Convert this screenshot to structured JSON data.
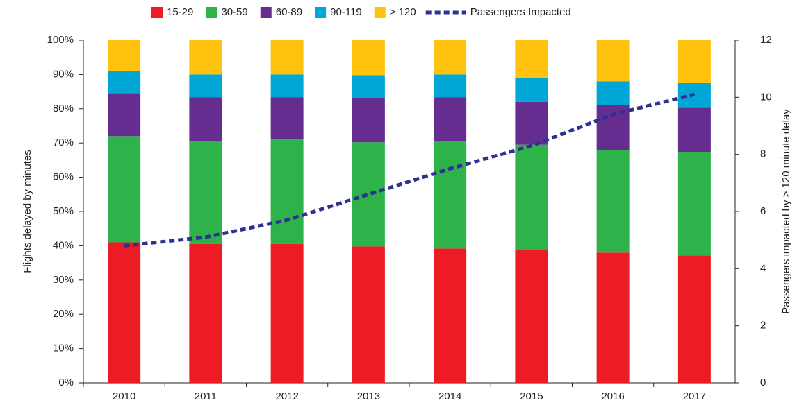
{
  "chart_data": {
    "type": "bar",
    "stacked": true,
    "categories": [
      "2010",
      "2011",
      "2012",
      "2013",
      "2014",
      "2015",
      "2016",
      "2017"
    ],
    "series": [
      {
        "name": "15-29",
        "color": "#ed1c24",
        "values": [
          41,
          40.5,
          40.5,
          39.8,
          39.2,
          38.8,
          38,
          37.2
        ]
      },
      {
        "name": "30-59",
        "color": "#2db34a",
        "values": [
          31,
          30,
          30.5,
          30.4,
          31.4,
          30.7,
          30,
          30.2
        ]
      },
      {
        "name": "60-89",
        "color": "#662d91",
        "values": [
          12.5,
          12.8,
          12.3,
          12.8,
          12.7,
          12.5,
          13,
          12.9
        ]
      },
      {
        "name": "90-119",
        "color": "#00a6d6",
        "values": [
          6.5,
          6.7,
          6.7,
          6.8,
          6.7,
          7,
          7,
          7.2
        ]
      },
      {
        "name": "> 120",
        "color": "#ffc20e",
        "values": [
          9,
          10,
          10,
          10.2,
          10,
          11,
          12,
          12.5
        ]
      },
      {
        "name": "Passengers Impacted",
        "color": "#2e3192",
        "type": "line",
        "dashed": true,
        "axis": "y2",
        "values": [
          4.8,
          5.1,
          5.7,
          6.6,
          7.5,
          8.3,
          9.4,
          10.1
        ]
      }
    ],
    "ylabel": "Flights delayed by minutes",
    "y2label": "Passengers impacted by > 120 minute delay",
    "ylim": [
      0,
      100
    ],
    "yticks": [
      {
        "value": 0,
        "label": "0%"
      },
      {
        "value": 10,
        "label": "10%"
      },
      {
        "value": 20,
        "label": "20%"
      },
      {
        "value": 30,
        "label": "30%"
      },
      {
        "value": 40,
        "label": "40%"
      },
      {
        "value": 50,
        "label": "50%"
      },
      {
        "value": 60,
        "label": "60%"
      },
      {
        "value": 70,
        "label": "70%"
      },
      {
        "value": 80,
        "label": "80%"
      },
      {
        "value": 90,
        "label": "90%"
      },
      {
        "value": 100,
        "label": "100%"
      }
    ],
    "y2lim": [
      0,
      12
    ],
    "y2ticks": [
      0,
      2,
      4,
      6,
      8,
      10,
      12
    ],
    "legend": "top",
    "grid": false
  }
}
